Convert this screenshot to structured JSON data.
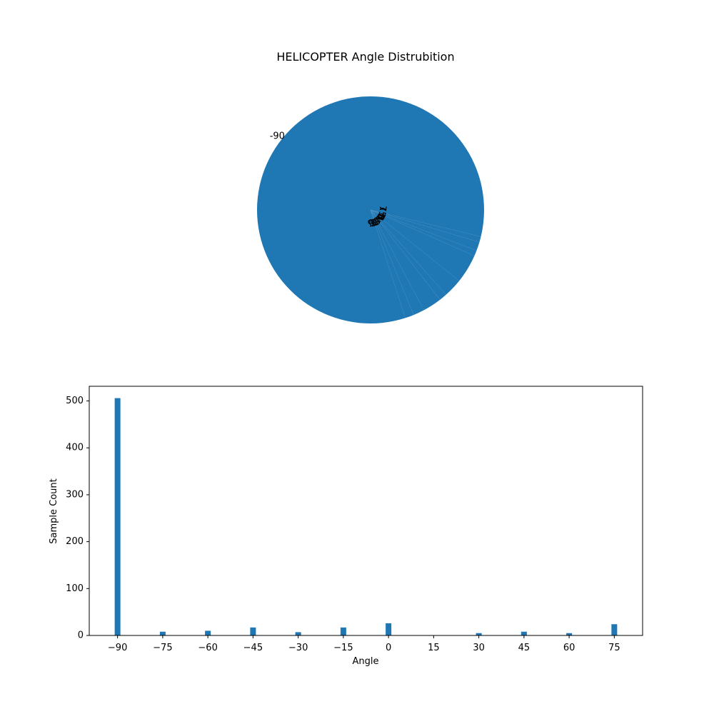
{
  "chart_data": [
    {
      "type": "pie",
      "title": "HELICOPTER Angle Distrubition",
      "labels": [
        "-90",
        "-75",
        "-60",
        "-45",
        "-30",
        "-15",
        "0",
        "15",
        "30",
        "45",
        "60",
        "75"
      ],
      "values": [
        506,
        8,
        10,
        17,
        7,
        17,
        26,
        0,
        5,
        8,
        5,
        24
      ],
      "start_angle_deg": 0,
      "color": "#1f77b4"
    },
    {
      "type": "bar",
      "xlabel": "Angle",
      "ylabel": "Sample Count",
      "x": [
        -90,
        -75,
        -60,
        -45,
        -30,
        -15,
        0,
        15,
        30,
        45,
        60,
        75
      ],
      "values": [
        506,
        8,
        10,
        17,
        7,
        17,
        26,
        0,
        5,
        8,
        5,
        24
      ],
      "xticks": [
        "−90",
        "−75",
        "−60",
        "−45",
        "−30",
        "−15",
        "0",
        "15",
        "30",
        "45",
        "60",
        "75"
      ],
      "yticks": [
        "0",
        "100",
        "200",
        "300",
        "400",
        "500"
      ],
      "xlim": [
        -99.4,
        84.4
      ],
      "ylim": [
        0,
        531.3
      ],
      "grid": false,
      "color": "#1f77b4"
    }
  ]
}
